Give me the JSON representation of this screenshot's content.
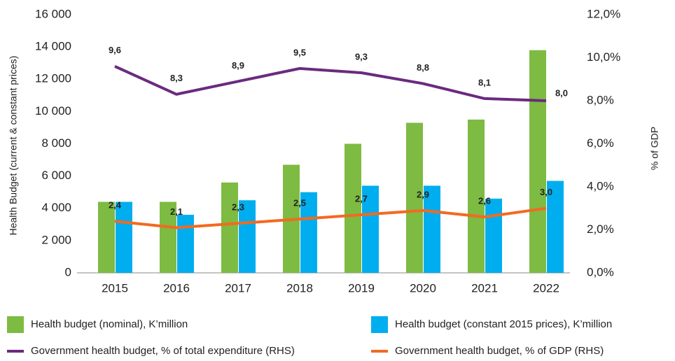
{
  "chart_data": {
    "type": "bar",
    "y_label": "Health Budget (current & constant prices)",
    "y2_label": "% of GDP",
    "categories": [
      "2015",
      "2016",
      "2017",
      "2018",
      "2019",
      "2020",
      "2021",
      "2022"
    ],
    "series": [
      {
        "name": "Health budget (nominal), K’million",
        "type": "bar",
        "color": "#7dbb42",
        "values": [
          4400,
          4400,
          5600,
          6700,
          8000,
          9300,
          9500,
          13800
        ]
      },
      {
        "name": "Health budget (constant 2015 prices), K’million",
        "type": "bar",
        "color": "#00aeef",
        "values": [
          4400,
          3600,
          4500,
          5000,
          5400,
          5400,
          4600,
          5700
        ]
      },
      {
        "name": "Government health budget, % of total expenditure (RHS)",
        "type": "line",
        "axis": "y2",
        "color": "#6b2a7f",
        "values": [
          9.6,
          8.3,
          8.9,
          9.5,
          9.3,
          8.8,
          8.1,
          8.0
        ],
        "value_labels": [
          "9,6",
          "8,3",
          "8,9",
          "9,5",
          "9,3",
          "8,8",
          "8,1",
          "8,0"
        ]
      },
      {
        "name": "Government health budget, % of GDP (RHS)",
        "type": "line",
        "axis": "y2",
        "color": "#f26a21",
        "values": [
          2.4,
          2.1,
          2.3,
          2.5,
          2.7,
          2.9,
          2.6,
          3.0
        ],
        "value_labels": [
          "2,4",
          "2,1",
          "2,3",
          "2,5",
          "2,7",
          "2,9",
          "2,6",
          "3,0"
        ]
      }
    ],
    "ylim": [
      0,
      16000
    ],
    "yticks": [
      0,
      {
        "value": 2000,
        "label": "2 000"
      },
      {
        "value": 4000,
        "label": "4 000"
      },
      {
        "value": 6000,
        "label": "6 000"
      },
      {
        "value": 8000,
        "label": "8 000"
      },
      {
        "value": 10000,
        "label": "10 000"
      },
      {
        "value": 12000,
        "label": "12 000"
      },
      {
        "value": 14000,
        "label": "14 000"
      },
      {
        "value": 16000,
        "label": "16 000"
      }
    ],
    "y2lim": [
      0,
      12
    ],
    "y2ticks": [
      {
        "value": 0,
        "label": "0,0%"
      },
      {
        "value": 2,
        "label": "2,0%"
      },
      {
        "value": 4,
        "label": "4,0%"
      },
      {
        "value": 6,
        "label": "6,0%"
      },
      {
        "value": 8,
        "label": "8,0%"
      },
      {
        "value": 10,
        "label": "10,0%"
      },
      {
        "value": 12,
        "label": "12,0%"
      }
    ],
    "grid": false
  }
}
